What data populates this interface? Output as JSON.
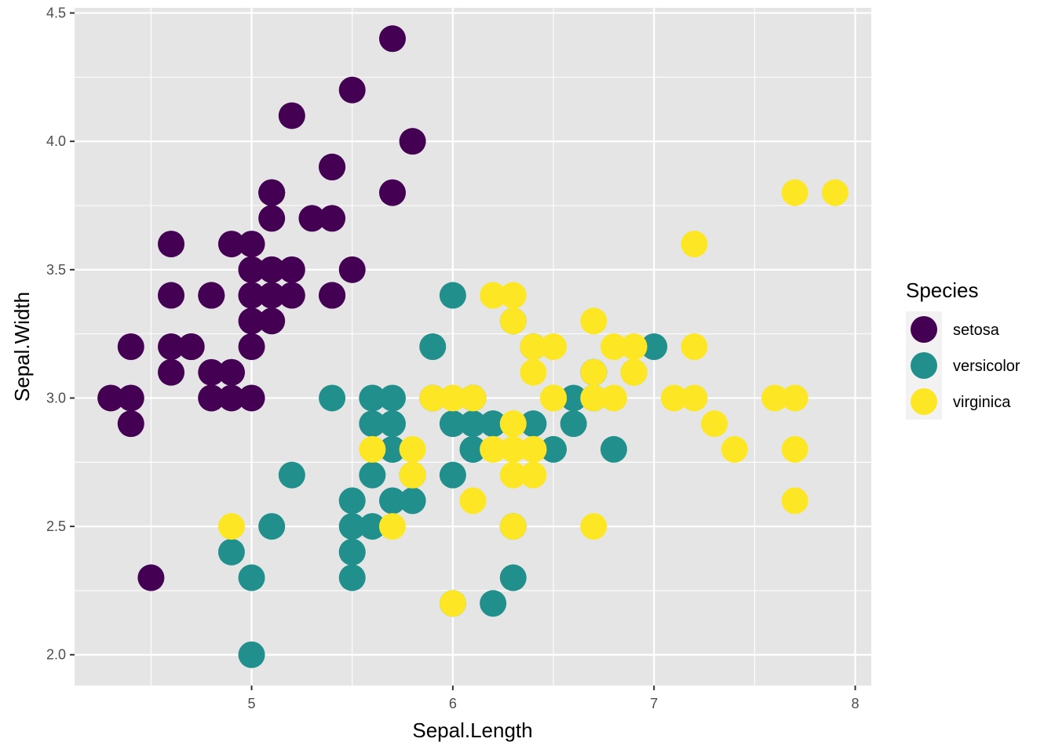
{
  "chart_data": {
    "type": "scatter",
    "title": "",
    "xlabel": "Sepal.Length",
    "ylabel": "Sepal.Width",
    "xlim": [
      4.12,
      8.08
    ],
    "ylim": [
      1.88,
      4.52
    ],
    "x_ticks": [
      5,
      6,
      7,
      8
    ],
    "y_ticks": [
      2.0,
      2.5,
      3.0,
      3.5,
      4.0,
      4.5
    ],
    "x_tick_labels": [
      "5",
      "6",
      "7",
      "8"
    ],
    "y_tick_labels": [
      "2.0",
      "2.5",
      "3.0",
      "3.5",
      "4.0",
      "4.5"
    ],
    "grid": true,
    "panel_background": "#e5e5e5",
    "legend": {
      "title": "Species",
      "placement": "right"
    },
    "series": [
      {
        "name": "setosa",
        "color": "#440154",
        "points": [
          [
            5.1,
            3.5
          ],
          [
            4.9,
            3.0
          ],
          [
            4.7,
            3.2
          ],
          [
            4.6,
            3.1
          ],
          [
            5.0,
            3.6
          ],
          [
            5.4,
            3.9
          ],
          [
            4.6,
            3.4
          ],
          [
            5.0,
            3.4
          ],
          [
            4.4,
            2.9
          ],
          [
            4.9,
            3.1
          ],
          [
            5.4,
            3.7
          ],
          [
            4.8,
            3.4
          ],
          [
            4.8,
            3.0
          ],
          [
            4.3,
            3.0
          ],
          [
            5.8,
            4.0
          ],
          [
            5.7,
            4.4
          ],
          [
            5.4,
            3.9
          ],
          [
            5.1,
            3.5
          ],
          [
            5.7,
            3.8
          ],
          [
            5.1,
            3.8
          ],
          [
            5.4,
            3.4
          ],
          [
            5.1,
            3.7
          ],
          [
            4.6,
            3.6
          ],
          [
            5.1,
            3.3
          ],
          [
            4.8,
            3.4
          ],
          [
            5.0,
            3.0
          ],
          [
            5.0,
            3.4
          ],
          [
            5.2,
            3.5
          ],
          [
            5.2,
            3.4
          ],
          [
            4.7,
            3.2
          ],
          [
            4.8,
            3.1
          ],
          [
            5.4,
            3.4
          ],
          [
            5.2,
            4.1
          ],
          [
            5.5,
            4.2
          ],
          [
            4.9,
            3.1
          ],
          [
            5.0,
            3.2
          ],
          [
            5.5,
            3.5
          ],
          [
            4.9,
            3.6
          ],
          [
            4.4,
            3.0
          ],
          [
            5.1,
            3.4
          ],
          [
            5.0,
            3.5
          ],
          [
            4.5,
            2.3
          ],
          [
            4.4,
            3.2
          ],
          [
            5.0,
            3.5
          ],
          [
            5.1,
            3.8
          ],
          [
            4.8,
            3.0
          ],
          [
            5.1,
            3.8
          ],
          [
            4.6,
            3.2
          ],
          [
            5.3,
            3.7
          ],
          [
            5.0,
            3.3
          ]
        ]
      },
      {
        "name": "versicolor",
        "color": "#21908c",
        "points": [
          [
            7.0,
            3.2
          ],
          [
            6.4,
            3.2
          ],
          [
            6.9,
            3.1
          ],
          [
            5.5,
            2.3
          ],
          [
            6.5,
            2.8
          ],
          [
            5.7,
            2.8
          ],
          [
            6.3,
            3.3
          ],
          [
            4.9,
            2.4
          ],
          [
            6.6,
            2.9
          ],
          [
            5.2,
            2.7
          ],
          [
            5.0,
            2.0
          ],
          [
            5.9,
            3.0
          ],
          [
            6.0,
            2.2
          ],
          [
            6.1,
            2.9
          ],
          [
            5.6,
            2.9
          ],
          [
            6.7,
            3.1
          ],
          [
            5.6,
            3.0
          ],
          [
            5.8,
            2.7
          ],
          [
            6.2,
            2.2
          ],
          [
            5.6,
            2.5
          ],
          [
            5.9,
            3.2
          ],
          [
            6.1,
            2.8
          ],
          [
            6.3,
            2.5
          ],
          [
            6.1,
            2.8
          ],
          [
            6.4,
            2.9
          ],
          [
            6.6,
            3.0
          ],
          [
            6.8,
            2.8
          ],
          [
            6.7,
            3.0
          ],
          [
            6.0,
            2.9
          ],
          [
            5.7,
            2.6
          ],
          [
            5.5,
            2.4
          ],
          [
            5.5,
            2.4
          ],
          [
            5.8,
            2.7
          ],
          [
            6.0,
            2.7
          ],
          [
            5.4,
            3.0
          ],
          [
            6.0,
            3.4
          ],
          [
            6.7,
            3.1
          ],
          [
            6.3,
            2.3
          ],
          [
            5.6,
            3.0
          ],
          [
            5.5,
            2.5
          ],
          [
            5.5,
            2.6
          ],
          [
            6.1,
            3.0
          ],
          [
            5.8,
            2.6
          ],
          [
            5.0,
            2.3
          ],
          [
            5.6,
            2.7
          ],
          [
            5.7,
            3.0
          ],
          [
            5.7,
            2.9
          ],
          [
            6.2,
            2.9
          ],
          [
            5.1,
            2.5
          ],
          [
            5.7,
            2.8
          ]
        ]
      },
      {
        "name": "virginica",
        "color": "#fde725",
        "points": [
          [
            6.3,
            3.3
          ],
          [
            5.8,
            2.7
          ],
          [
            7.1,
            3.0
          ],
          [
            6.3,
            2.9
          ],
          [
            6.5,
            3.0
          ],
          [
            7.6,
            3.0
          ],
          [
            4.9,
            2.5
          ],
          [
            7.3,
            2.9
          ],
          [
            6.7,
            2.5
          ],
          [
            7.2,
            3.6
          ],
          [
            6.5,
            3.2
          ],
          [
            6.4,
            2.7
          ],
          [
            6.8,
            3.0
          ],
          [
            5.7,
            2.5
          ],
          [
            5.8,
            2.8
          ],
          [
            6.4,
            3.2
          ],
          [
            6.5,
            3.0
          ],
          [
            7.7,
            3.8
          ],
          [
            7.7,
            2.6
          ],
          [
            6.0,
            2.2
          ],
          [
            6.9,
            3.2
          ],
          [
            5.6,
            2.8
          ],
          [
            7.7,
            2.8
          ],
          [
            6.3,
            2.7
          ],
          [
            6.7,
            3.3
          ],
          [
            7.2,
            3.2
          ],
          [
            6.2,
            2.8
          ],
          [
            6.1,
            3.0
          ],
          [
            6.4,
            2.8
          ],
          [
            7.2,
            3.0
          ],
          [
            7.4,
            2.8
          ],
          [
            7.9,
            3.8
          ],
          [
            6.4,
            2.8
          ],
          [
            6.3,
            2.8
          ],
          [
            6.1,
            2.6
          ],
          [
            7.7,
            3.0
          ],
          [
            6.3,
            3.4
          ],
          [
            6.4,
            3.1
          ],
          [
            6.0,
            3.0
          ],
          [
            6.9,
            3.1
          ],
          [
            6.7,
            3.1
          ],
          [
            6.9,
            3.1
          ],
          [
            5.8,
            2.7
          ],
          [
            6.8,
            3.2
          ],
          [
            6.7,
            3.3
          ],
          [
            6.7,
            3.0
          ],
          [
            6.3,
            2.5
          ],
          [
            6.5,
            3.0
          ],
          [
            6.2,
            3.4
          ],
          [
            5.9,
            3.0
          ]
        ]
      }
    ]
  }
}
